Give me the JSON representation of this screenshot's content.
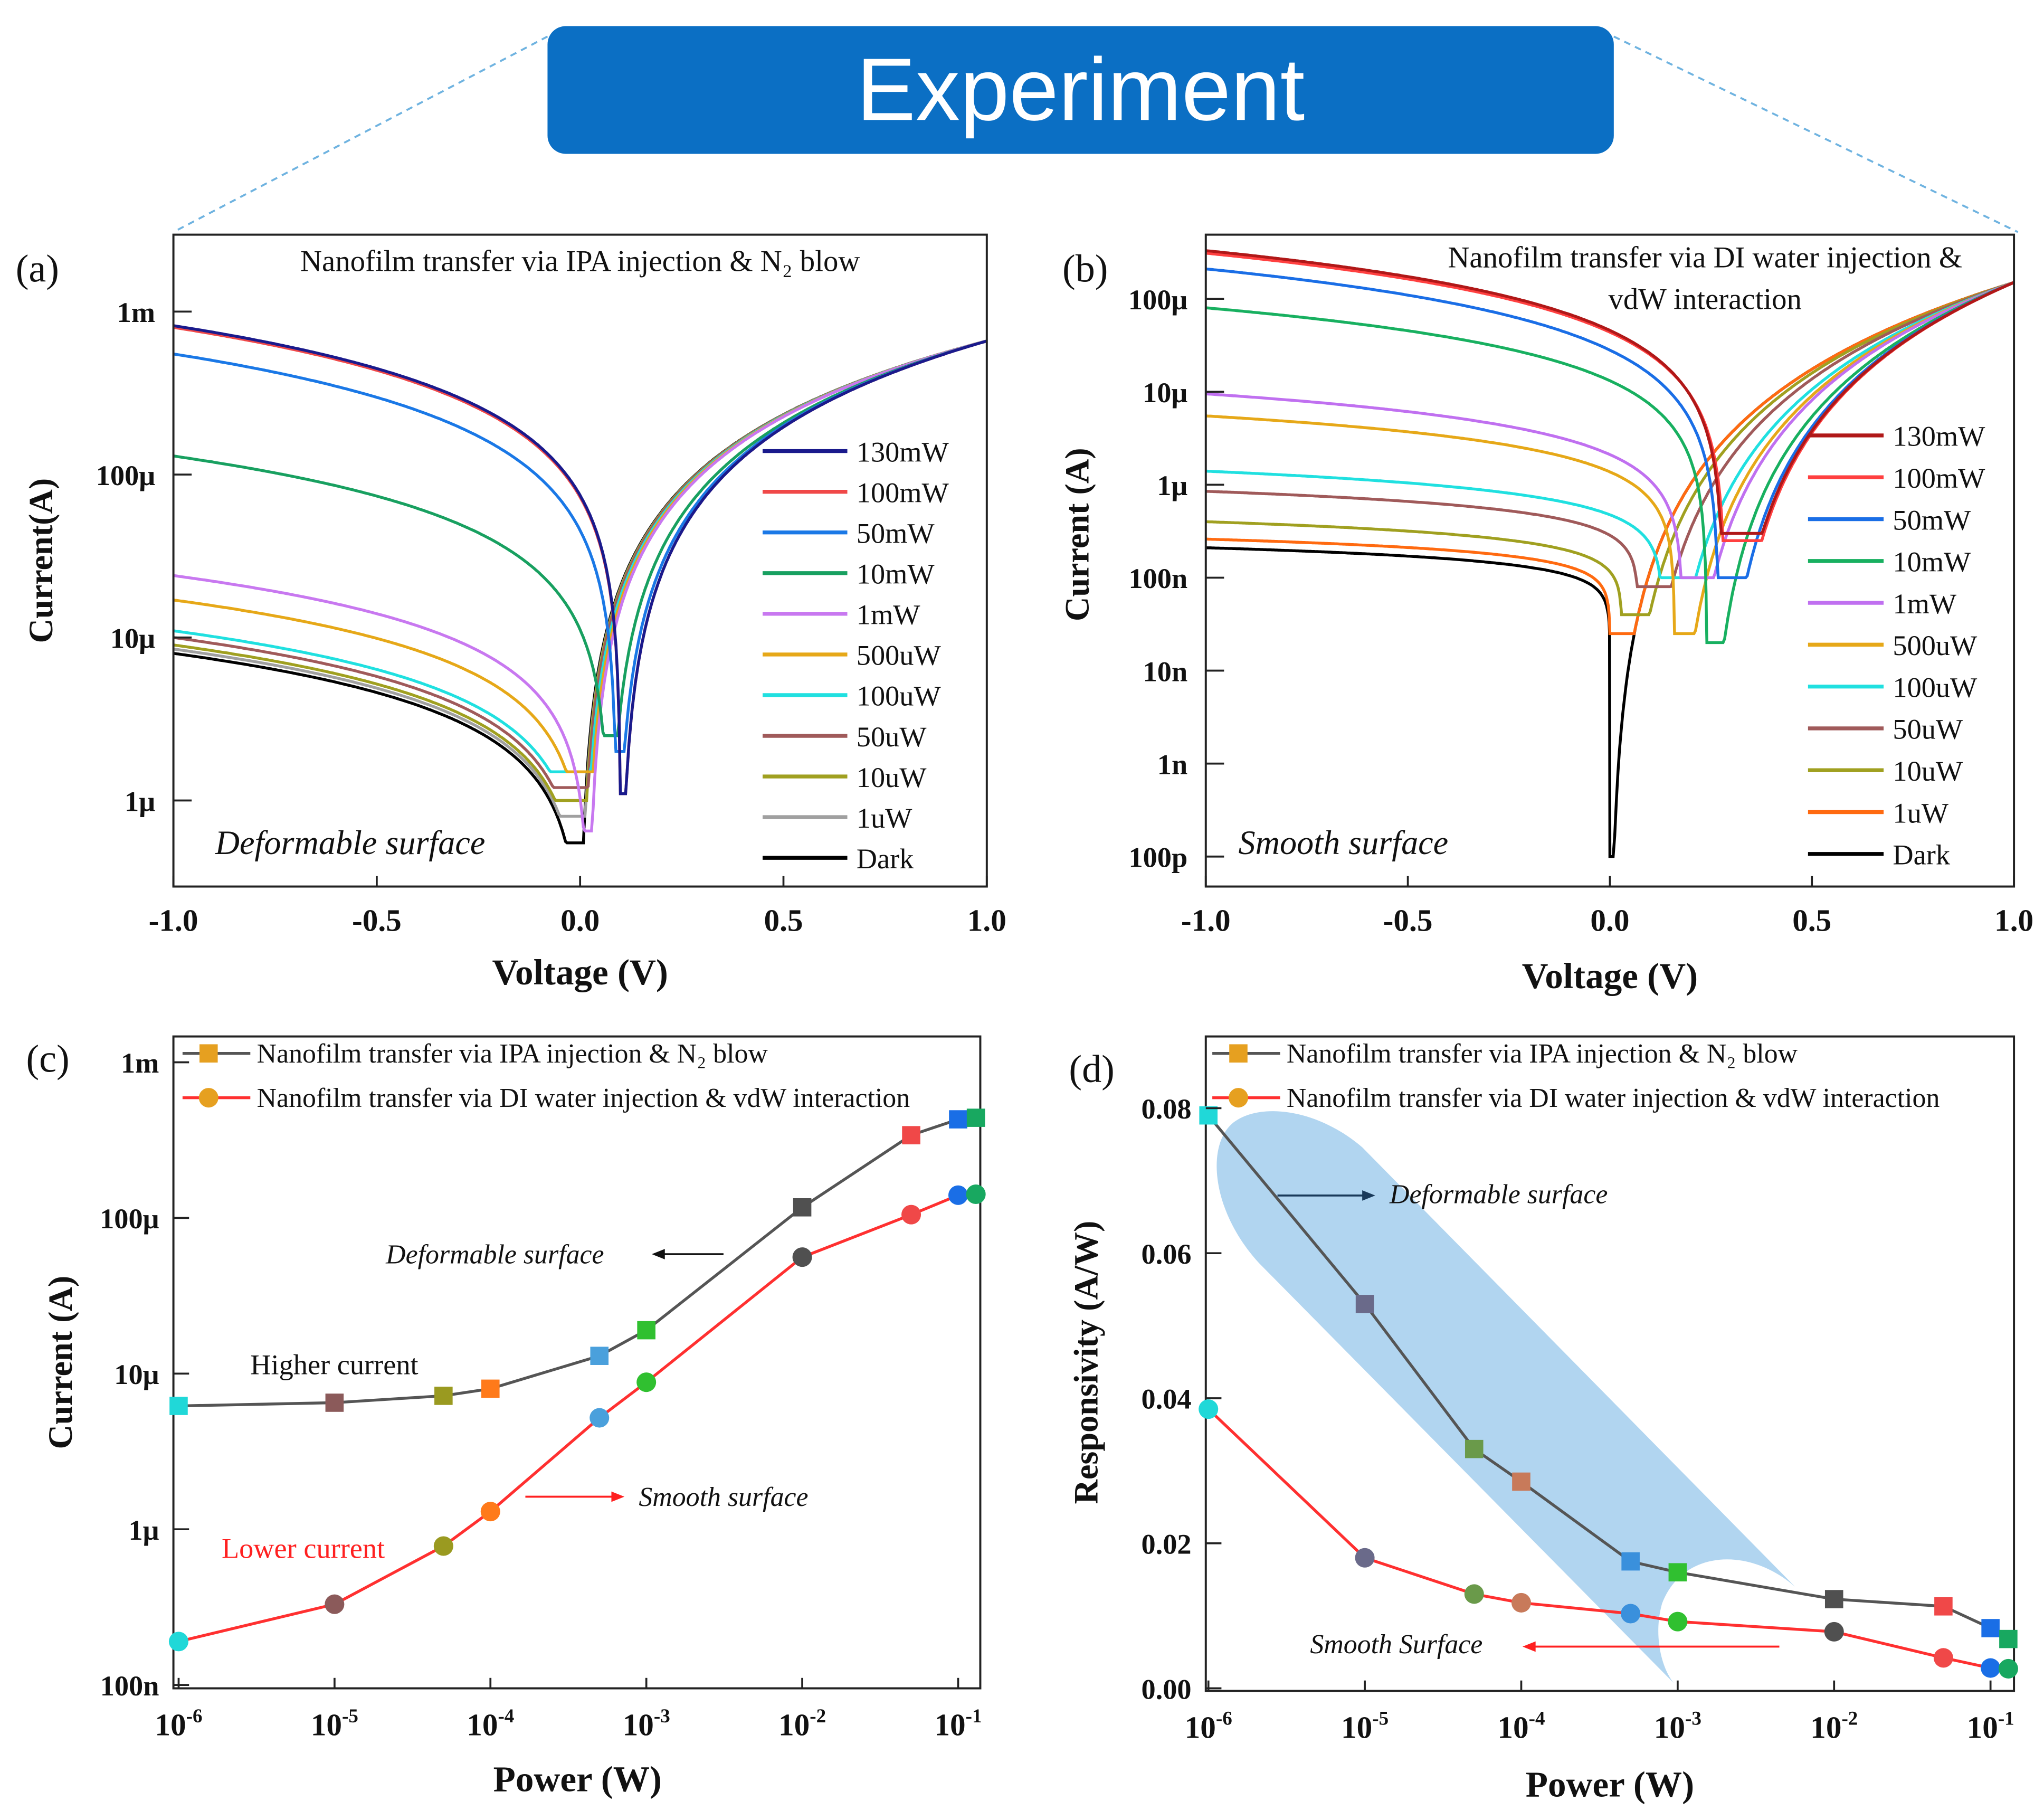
{
  "header": {
    "title": "Experiment",
    "box_color": "#0b6fc4",
    "dash_color": "#6fb3e0"
  },
  "panel_labels": [
    "(a)",
    "(b)",
    "(c)",
    "(d)"
  ],
  "chart_data": [
    {
      "type": "line",
      "id": "a",
      "title": "Nanofilm transfer via IPA injection & N₂ blow",
      "xlabel": "Voltage (V)",
      "ylabel": "Current(A)",
      "xlim": [
        -1,
        1
      ],
      "yscale": "log",
      "x_ticks": [
        {
          "v": -1,
          "label": "-1.0"
        },
        {
          "v": -0.5,
          "label": "-0.5"
        },
        {
          "v": 0,
          "label": "0.0"
        },
        {
          "v": 0.5,
          "label": "0.5"
        },
        {
          "v": 1,
          "label": "1.0"
        }
      ],
      "y_ticks": [
        {
          "v": 0.001,
          "label": "1m"
        },
        {
          "v": 0.0001,
          "label": "100μ"
        },
        {
          "v": 1e-05,
          "label": "10μ"
        },
        {
          "v": 1e-06,
          "label": "1μ"
        }
      ],
      "annotation": "Deformable surface",
      "forward": {
        "I_at_1V": 0.00066,
        "exponent": 1.5
      },
      "series": [
        {
          "name": "130mW",
          "color": "#1a1a8c",
          "I_at_minus1V": 0.00082,
          "zero_V": 0.1,
          "min_I": 1.1e-06,
          "rev_exp": 1.0
        },
        {
          "name": "100mW",
          "color": "#f04848",
          "I_at_minus1V": 0.0008,
          "zero_V": 0.1,
          "min_I": 1.1e-06,
          "rev_exp": 1.0
        },
        {
          "name": "50mW",
          "color": "#1a78e6",
          "I_at_minus1V": 0.00055,
          "zero_V": 0.09,
          "min_I": 2e-06,
          "rev_exp": 1.0
        },
        {
          "name": "10mW",
          "color": "#18a060",
          "I_at_minus1V": 0.00013,
          "zero_V": 0.07,
          "min_I": 2.5e-06,
          "rev_exp": 0.9
        },
        {
          "name": "1mW",
          "color": "#c878f0",
          "I_at_minus1V": 2.4e-05,
          "zero_V": 0.02,
          "min_I": 6.5e-07,
          "rev_exp": 0.8
        },
        {
          "name": "500uW",
          "color": "#e6a818",
          "I_at_minus1V": 1.7e-05,
          "zero_V": 0.015,
          "min_I": 1.5e-06,
          "rev_exp": 0.8
        },
        {
          "name": "100uW",
          "color": "#20e0e0",
          "I_at_minus1V": 1.1e-05,
          "zero_V": 0.01,
          "min_I": 1.5e-06,
          "rev_exp": 0.8
        },
        {
          "name": "50uW",
          "color": "#a05a5a",
          "I_at_minus1V": 1e-05,
          "zero_V": 0.005,
          "min_I": 1.2e-06,
          "rev_exp": 0.8
        },
        {
          "name": "10uW",
          "color": "#a0a020",
          "I_at_minus1V": 9e-06,
          "zero_V": 0.003,
          "min_I": 1e-06,
          "rev_exp": 0.8
        },
        {
          "name": "1uW",
          "color": "#a0a0a0",
          "I_at_minus1V": 8.5e-06,
          "zero_V": 0.002,
          "min_I": 8e-07,
          "rev_exp": 0.8
        },
        {
          "name": "Dark",
          "color": "#000000",
          "I_at_minus1V": 8e-06,
          "zero_V": 0.0,
          "min_I": 5.5e-07,
          "rev_exp": 0.8
        }
      ]
    },
    {
      "type": "line",
      "id": "b",
      "title": [
        "Nanofilm transfer via DI water injection &",
        "vdW interaction"
      ],
      "xlabel": "Voltage (V)",
      "ylabel": "Current (A)",
      "xlim": [
        -1,
        1
      ],
      "yscale": "log",
      "x_ticks": [
        {
          "v": -1,
          "label": "-1.0"
        },
        {
          "v": -0.5,
          "label": "-0.5"
        },
        {
          "v": 0,
          "label": "0.0"
        },
        {
          "v": 0.5,
          "label": "0.5"
        },
        {
          "v": 1,
          "label": "1.0"
        }
      ],
      "y_ticks": [
        {
          "v": 0.0001,
          "label": "100μ"
        },
        {
          "v": 1e-05,
          "label": "10μ"
        },
        {
          "v": 1e-06,
          "label": "1μ"
        },
        {
          "v": 1e-07,
          "label": "100n"
        },
        {
          "v": 1e-08,
          "label": "10n"
        },
        {
          "v": 1e-09,
          "label": "1n"
        },
        {
          "v": 1e-10,
          "label": "100p"
        }
      ],
      "annotation": "Smooth surface",
      "forward": {
        "I_at_1V": 0.00015,
        "exponent": 3.1
      },
      "series": [
        {
          "name": "130mW",
          "color": "#b01818",
          "I_at_minus1V": 0.00033,
          "zero_V": 0.28,
          "min_I": 3e-07,
          "rev_exp": 1.3
        },
        {
          "name": "100mW",
          "color": "#ff4040",
          "I_at_minus1V": 0.00031,
          "zero_V": 0.285,
          "min_I": 2.5e-07,
          "rev_exp": 1.3
        },
        {
          "name": "50mW",
          "color": "#1a6ee6",
          "I_at_minus1V": 0.00021,
          "zero_V": 0.27,
          "min_I": 1e-07,
          "rev_exp": 1.3
        },
        {
          "name": "10mW",
          "color": "#18b060",
          "I_at_minus1V": 8e-05,
          "zero_V": 0.24,
          "min_I": 2e-08,
          "rev_exp": 1.1
        },
        {
          "name": "1mW",
          "color": "#c070f0",
          "I_at_minus1V": 9.5e-06,
          "zero_V": 0.18,
          "min_I": 1e-07,
          "rev_exp": 0.8
        },
        {
          "name": "500uW",
          "color": "#e6a818",
          "I_at_minus1V": 5.5e-06,
          "zero_V": 0.16,
          "min_I": 2.5e-08,
          "rev_exp": 0.7
        },
        {
          "name": "100uW",
          "color": "#20e0e0",
          "I_at_minus1V": 1.4e-06,
          "zero_V": 0.13,
          "min_I": 1e-07,
          "rev_exp": 0.5
        },
        {
          "name": "50uW",
          "color": "#a05a5a",
          "I_at_minus1V": 8.5e-07,
          "zero_V": 0.07,
          "min_I": 8e-08,
          "rev_exp": 0.4
        },
        {
          "name": "10uW",
          "color": "#a0a020",
          "I_at_minus1V": 4e-07,
          "zero_V": 0.03,
          "min_I": 4e-08,
          "rev_exp": 0.35
        },
        {
          "name": "1uW",
          "color": "#ff6a10",
          "I_at_minus1V": 2.6e-07,
          "zero_V": 0.0,
          "min_I": 2.5e-08,
          "rev_exp": 0.3
        },
        {
          "name": "Dark",
          "color": "#000000",
          "I_at_minus1V": 2.1e-07,
          "zero_V": 0.0,
          "min_I": 1e-10,
          "rev_exp": 0.3
        }
      ]
    },
    {
      "type": "line",
      "id": "c",
      "xlabel": "Power (W)",
      "ylabel": "Current (A)",
      "xscale": "log",
      "yscale": "log",
      "xlim": [
        1e-06,
        0.13
      ],
      "x_ticks": [
        -6,
        -5,
        -4,
        -3,
        -2,
        -1
      ],
      "y_ticks": [
        {
          "v": 0.001,
          "label": "1m"
        },
        {
          "v": 0.0001,
          "label": "100μ"
        },
        {
          "v": 1e-05,
          "label": "10μ"
        },
        {
          "v": 1e-06,
          "label": "1μ"
        },
        {
          "v": 1e-07,
          "label": "100n"
        }
      ],
      "x": [
        1e-06,
        1e-05,
        5e-05,
        0.0001,
        0.0005,
        0.001,
        0.01,
        0.05,
        0.1,
        0.13
      ],
      "point_colors": [
        "#20d8d8",
        "#8b5a5a",
        "#9a9a20",
        "#ff7a1a",
        "#4aa0dc",
        "#30c030",
        "#505050",
        "#f04848",
        "#1a6ee6",
        "#18a860"
      ],
      "series": [
        {
          "name": "Nanofilm transfer via IPA injection & N₂ blow",
          "line_color": "#555555",
          "marker": "square",
          "legend_marker_color": "#e6a020",
          "values": [
            6.2e-06,
            6.5e-06,
            7.2e-06,
            8e-06,
            1.3e-05,
            1.9e-05,
            0.000117,
            0.00034,
            0.00043,
            0.00044
          ]
        },
        {
          "name": "Nanofilm transfer via DI water injection & vdW interaction",
          "line_color": "#ff3030",
          "marker": "circle",
          "legend_marker_color": "#e6a020",
          "values": [
            1.9e-07,
            3.3e-07,
            7.8e-07,
            1.3e-06,
            5.2e-06,
            8.8e-06,
            5.6e-05,
            0.000105,
            0.00014,
            0.000142
          ]
        }
      ],
      "annotations": {
        "deformable": "Deformable surface",
        "higher": "Higher current",
        "smooth": "Smooth surface",
        "lower": "Lower current"
      }
    },
    {
      "type": "line",
      "id": "d",
      "xlabel": "Power (W)",
      "ylabel": "Responsivity (A/W)",
      "xscale": "log",
      "xlim": [
        1e-06,
        0.13
      ],
      "ylim": [
        0,
        0.08
      ],
      "x_ticks": [
        -6,
        -5,
        -4,
        -3,
        -2,
        -1
      ],
      "y_ticks": [
        {
          "v": 0.08,
          "label": "0.08"
        },
        {
          "v": 0.06,
          "label": "0.06"
        },
        {
          "v": 0.04,
          "label": "0.04"
        },
        {
          "v": 0.02,
          "label": "0.02"
        },
        {
          "v": 0,
          "label": "0.00"
        }
      ],
      "x": [
        1e-06,
        1e-05,
        5e-05,
        0.0001,
        0.0005,
        0.001,
        0.01,
        0.05,
        0.1,
        0.13
      ],
      "point_colors": [
        "#20d8d8",
        "#6a6a8a",
        "#6a9a4a",
        "#c87a5a",
        "#3a90dc",
        "#30c030",
        "#505050",
        "#f04848",
        "#1a6ee6",
        "#18a860"
      ],
      "highlight_color": "#a9d0ee",
      "series": [
        {
          "name": "Nanofilm transfer via IPA injection & N₂ blow",
          "line_color": "#555555",
          "marker": "square",
          "legend_marker_color": "#e6a020",
          "values": [
            0.079,
            0.053,
            0.033,
            0.0285,
            0.0175,
            0.016,
            0.0123,
            0.0113,
            0.0083,
            0.0068
          ]
        },
        {
          "name": "Nanofilm transfer via DI water injection & vdW interaction",
          "line_color": "#ff3030",
          "marker": "circle",
          "legend_marker_color": "#e6a020",
          "values": [
            0.0385,
            0.018,
            0.013,
            0.0118,
            0.0103,
            0.0092,
            0.0078,
            0.0042,
            0.0028,
            0.0027
          ]
        }
      ],
      "annotations": {
        "deformable": "Deformable surface",
        "smooth": "Smooth Surface"
      }
    }
  ]
}
